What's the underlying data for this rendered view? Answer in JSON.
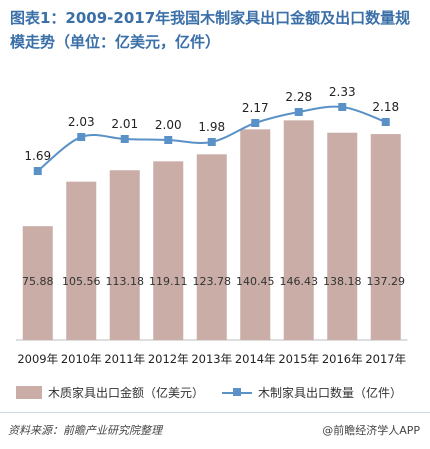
{
  "title": "图表1：2009-2017年我国木制家具出口金额及出口数量规模走势（单位：亿美元，亿件）",
  "source_text": "资料来源：前瞻产业研究院整理",
  "credit_text": "@前瞻经济学人APP",
  "colors": {
    "bar": "#c9ada6",
    "line": "#5a92c8",
    "title": "#3a6fa8"
  },
  "chart_data": {
    "type": "bar",
    "categories": [
      "2009年",
      "2010年",
      "2011年",
      "2012年",
      "2013年",
      "2014年",
      "2015年",
      "2016年",
      "2017年"
    ],
    "series": [
      {
        "name": "木质家具出口金额（亿美元）",
        "type": "bar",
        "values": [
          75.88,
          105.56,
          113.18,
          119.11,
          123.78,
          140.45,
          146.43,
          138.18,
          137.29
        ]
      },
      {
        "name": "木制家具出口数量（亿件）",
        "type": "line",
        "values": [
          1.69,
          2.03,
          2.01,
          2.0,
          1.98,
          2.17,
          2.28,
          2.33,
          2.18
        ]
      }
    ],
    "legend": "bottom",
    "grid": false
  }
}
